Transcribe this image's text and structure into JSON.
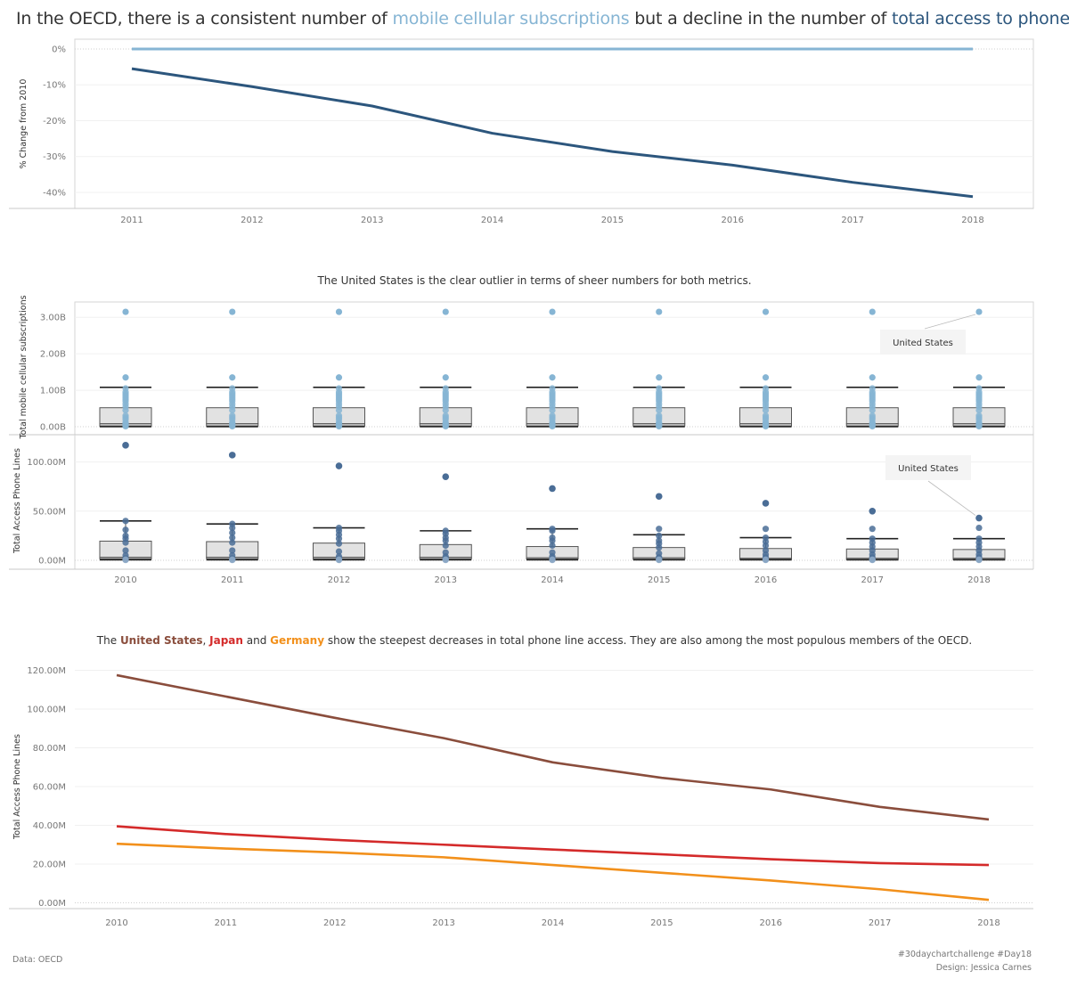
{
  "headline": {
    "p1": "In the OECD, there is a consistent number of ",
    "mobile": "mobile cellular subscriptions",
    "p2": " but a decline in the number of ",
    "lines": "total access to phone lines."
  },
  "colors": {
    "mobile": "#86b5d4",
    "lines": "#2c567d",
    "united_states": "#8a4d3c",
    "japan": "#d42a2a",
    "germany": "#f2901b"
  },
  "section2": {
    "title": "The United States is the clear outlier in terms of sheer numbers for both metrics."
  },
  "section3": {
    "p1": "The ",
    "us": "United States",
    "sep1": ", ",
    "jp": "Japan",
    "sep2": " and ",
    "de": "Germany",
    "p2": " show the steepest decreases in total phone line access. They are also among the most populous members of the OECD."
  },
  "chart_data": [
    {
      "type": "line",
      "ylabel": "% Change from 2010",
      "x": [
        "2011",
        "2012",
        "2013",
        "2014",
        "2015",
        "2016",
        "2017",
        "2018"
      ],
      "ylim": [
        -42,
        0
      ],
      "yticks": [
        0,
        -10,
        -20,
        -30,
        -40
      ],
      "ytick_labels": [
        "0%",
        "-10%",
        "-20%",
        "-30%",
        "-40%"
      ],
      "series": [
        {
          "name": "mobile cellular subscriptions",
          "color": "#86b5d4",
          "values": [
            0,
            0,
            0,
            0,
            0,
            0,
            0,
            0
          ]
        },
        {
          "name": "total access to phone lines",
          "color": "#2c567d",
          "values": [
            -5.5,
            -10.5,
            -15.9,
            -23.5,
            -28.6,
            -32.4,
            -37.2,
            -41.2
          ]
        }
      ]
    },
    {
      "type": "box",
      "ylabel": "Total mobile cellular subscriptions",
      "x": [
        "2010",
        "2011",
        "2012",
        "2013",
        "2014",
        "2015",
        "2016",
        "2017",
        "2018"
      ],
      "ylim": [
        0,
        3.2
      ],
      "yticks": [
        0,
        1,
        2,
        3
      ],
      "ytick_labels": [
        "0.00B",
        "1.00B",
        "2.00B",
        "3.00B"
      ],
      "color": "#86b5d4",
      "box": {
        "whisker_low": 0.0,
        "q1": 0.02,
        "median": 0.08,
        "q3": 0.52,
        "whisker_high": 1.08
      },
      "outliers": [
        3.15,
        1.35
      ],
      "points": [
        1.05,
        0.95,
        0.9,
        0.85,
        0.8,
        0.75,
        0.7,
        0.62,
        0.55,
        0.45,
        0.3,
        0.25,
        0.2,
        0.12,
        0.08,
        0.05,
        0.03,
        0.01
      ],
      "annotation": "United States"
    },
    {
      "type": "box",
      "ylabel": "Total Access Phone Lines",
      "x": [
        "2010",
        "2011",
        "2012",
        "2013",
        "2014",
        "2015",
        "2016",
        "2017",
        "2018"
      ],
      "ylim": [
        0,
        125
      ],
      "yticks": [
        0,
        50,
        100
      ],
      "ytick_labels": [
        "0.00M",
        "50.00M",
        "100.00M"
      ],
      "color": "#4a6d96",
      "boxes": [
        {
          "whisker_low": 0.5,
          "q1": 1.5,
          "median": 3,
          "q3": 19.5,
          "whisker_high": 40
        },
        {
          "whisker_low": 0.5,
          "q1": 1.5,
          "median": 3,
          "q3": 19,
          "whisker_high": 37
        },
        {
          "whisker_low": 0.5,
          "q1": 1.5,
          "median": 3,
          "q3": 17.5,
          "whisker_high": 33
        },
        {
          "whisker_low": 0.5,
          "q1": 1.5,
          "median": 3,
          "q3": 16,
          "whisker_high": 30
        },
        {
          "whisker_low": 0.5,
          "q1": 1.3,
          "median": 2.5,
          "q3": 14,
          "whisker_high": 32
        },
        {
          "whisker_low": 0.5,
          "q1": 1.2,
          "median": 2.5,
          "q3": 13,
          "whisker_high": 26
        },
        {
          "whisker_low": 0.5,
          "q1": 1.0,
          "median": 2.0,
          "q3": 12,
          "whisker_high": 23
        },
        {
          "whisker_low": 0.5,
          "q1": 0.8,
          "median": 2.0,
          "q3": 11.5,
          "whisker_high": 22
        },
        {
          "whisker_low": 0.5,
          "q1": 0.8,
          "median": 2.0,
          "q3": 11,
          "whisker_high": 22
        }
      ],
      "max_values": [
        117,
        107,
        96,
        85,
        73,
        65,
        58,
        50,
        43
      ],
      "high_points": [
        [
          40,
          31,
          25,
          22,
          18,
          10,
          5,
          2
        ],
        [
          37,
          33,
          28,
          23,
          18,
          10,
          5,
          2
        ],
        [
          33,
          30,
          26,
          22,
          17,
          9,
          4,
          2
        ],
        [
          30,
          27,
          23,
          20,
          15,
          8,
          4,
          2
        ],
        [
          32,
          30,
          23,
          20,
          15,
          8,
          4,
          2
        ],
        [
          32,
          25,
          20,
          17,
          13,
          7,
          3,
          2
        ],
        [
          32,
          23,
          19,
          15,
          10,
          6,
          3,
          1
        ],
        [
          32,
          22,
          18,
          14,
          10,
          6,
          3,
          1
        ],
        [
          33,
          22,
          18,
          14,
          10,
          6,
          3,
          1
        ]
      ],
      "annotation": "United States"
    },
    {
      "type": "line",
      "ylabel": "Total Access Phone Lines",
      "x": [
        "2010",
        "2011",
        "2012",
        "2013",
        "2014",
        "2015",
        "2016",
        "2017",
        "2018"
      ],
      "ylim": [
        -3,
        123
      ],
      "yticks": [
        0,
        20,
        40,
        60,
        80,
        100,
        120
      ],
      "ytick_labels": [
        "0.00M",
        "20.00M",
        "40.00M",
        "60.00M",
        "80.00M",
        "100.00M",
        "120.00M"
      ],
      "series": [
        {
          "name": "United States",
          "color": "#8a4d3c",
          "values": [
            117.5,
            106.5,
            95.5,
            85,
            72.5,
            64.5,
            58.5,
            49.5,
            43
          ]
        },
        {
          "name": "Japan",
          "color": "#d42a2a",
          "values": [
            39.5,
            35.5,
            32.5,
            30,
            27.5,
            25,
            22.5,
            20.5,
            19.5
          ]
        },
        {
          "name": "Germany",
          "color": "#f2901b",
          "values": [
            30.5,
            28,
            26,
            23.5,
            19.5,
            15.5,
            11.5,
            7,
            1.5
          ]
        }
      ]
    }
  ],
  "footer": {
    "source": "Data: OECD",
    "hashtag": "#30daychartchallenge #Day18",
    "design": "Design: Jessica Carnes"
  }
}
